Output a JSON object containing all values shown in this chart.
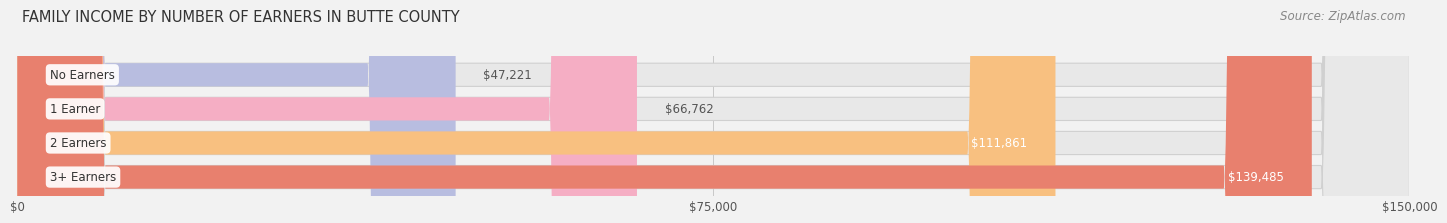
{
  "title": "FAMILY INCOME BY NUMBER OF EARNERS IN BUTTE COUNTY",
  "source": "Source: ZipAtlas.com",
  "categories": [
    "No Earners",
    "1 Earner",
    "2 Earners",
    "3+ Earners"
  ],
  "values": [
    47221,
    66762,
    111861,
    139485
  ],
  "bar_colors": [
    "#b8bde0",
    "#f5aec4",
    "#f8c080",
    "#e8806e"
  ],
  "bar_bg_color": "#e8e8e8",
  "background_color": "#f2f2f2",
  "xlim": [
    0,
    150000
  ],
  "xticks": [
    0,
    75000,
    150000
  ],
  "xticklabels": [
    "$0",
    "$75,000",
    "$150,000"
  ],
  "title_fontsize": 10.5,
  "source_fontsize": 8.5,
  "bar_label_fontsize": 8.5,
  "category_fontsize": 8.5,
  "tick_fontsize": 8.5,
  "bar_height": 0.68,
  "value_inside_threshold": 90000
}
